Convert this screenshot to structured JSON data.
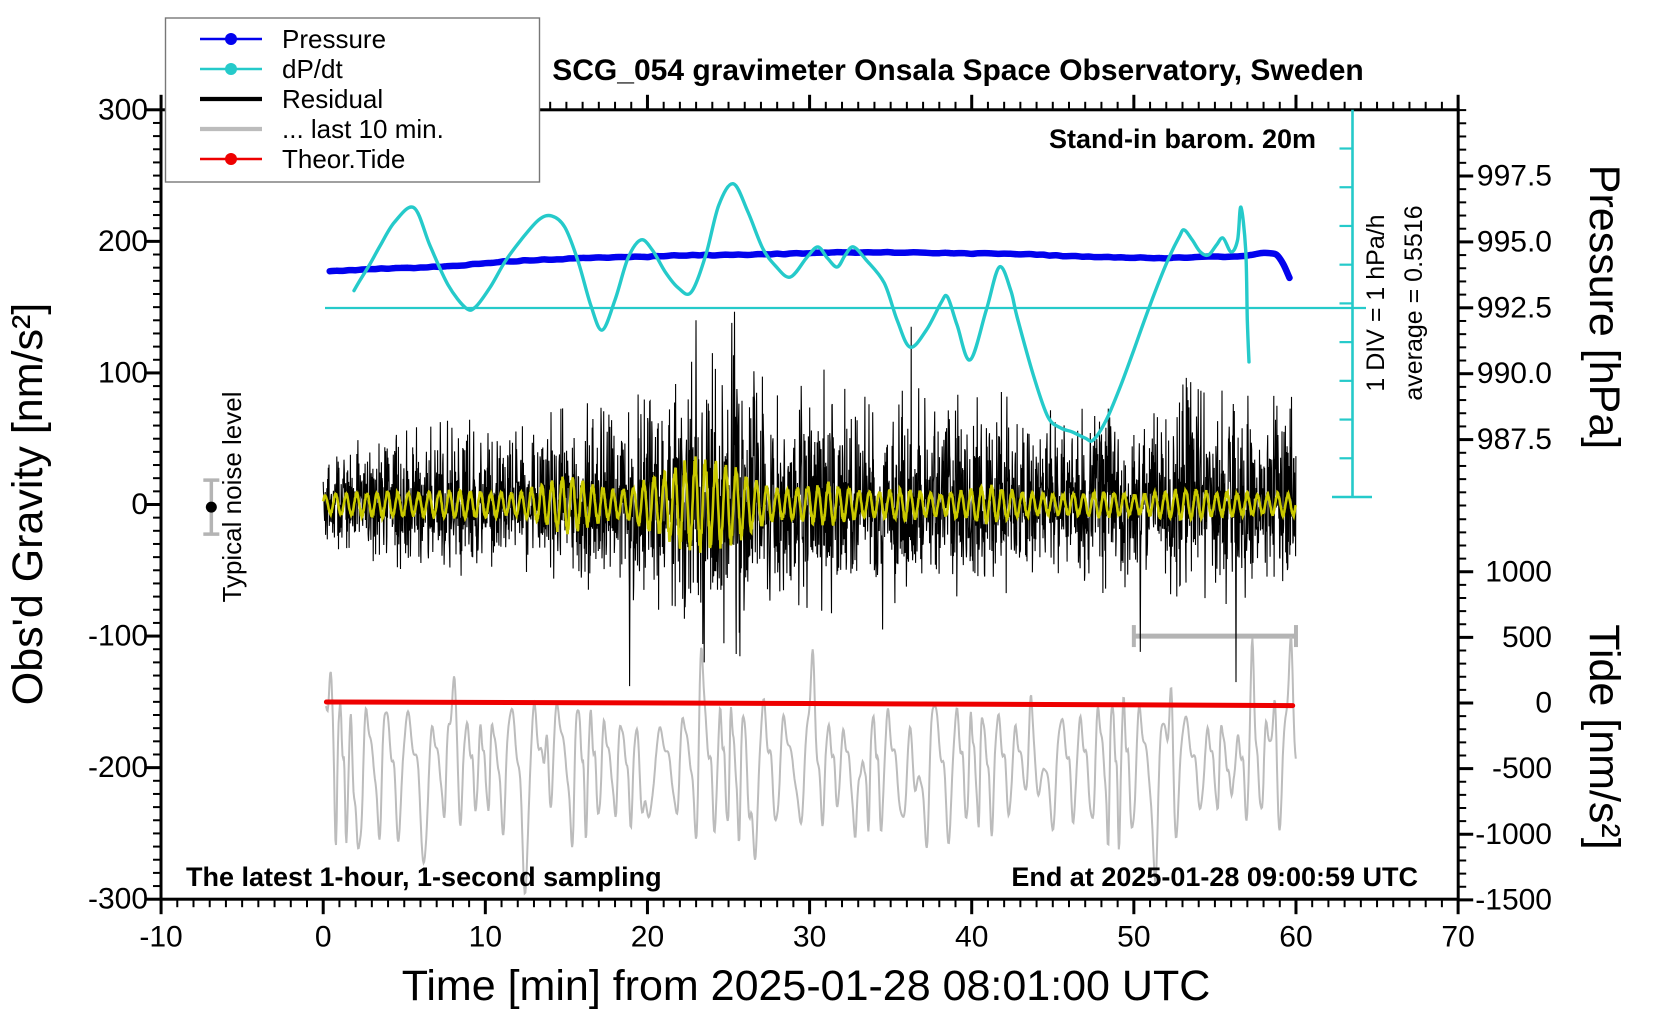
{
  "title": "SCG_054 gravimeter Onsala Space Observatory, Sweden",
  "annotations": {
    "barometer": "Stand-in barom. 20m",
    "div_scale": "1 DIV = 1 hPa/h",
    "average": "average = 0.5516",
    "noise_level": "Typical noise level",
    "sampling_note": "The latest 1-hour, 1-second sampling",
    "end_note": "End at 2025-01-28 09:00:59 UTC"
  },
  "legend": {
    "items": [
      {
        "label": "Pressure",
        "color": "#0202ee",
        "width": 2.6,
        "dot": true
      },
      {
        "label": "dP/dt",
        "color": "#25caca",
        "width": 2.6,
        "dot": true
      },
      {
        "label": "Residual",
        "color": "#000000",
        "width": 4.2,
        "dot": false
      },
      {
        "label": "... last 10 min.",
        "color": "#bcbcbc",
        "width": 4.2,
        "dot": false
      },
      {
        "label": "Theor.Tide",
        "color": "#ee0000",
        "width": 2.6,
        "dot": true
      }
    ]
  },
  "axes": {
    "x": {
      "label": "Time [min] from 2025-01-28 08:01:00 UTC",
      "range": [
        -10,
        70
      ],
      "major_ticks": [
        -10,
        0,
        10,
        20,
        30,
        40,
        50,
        60,
        70
      ],
      "minor_step": 1
    },
    "gravity": {
      "label": "Obs'd Gravity [nm/s²]",
      "range": [
        -300,
        300
      ],
      "major_ticks": [
        300,
        200,
        100,
        0,
        -100,
        -200,
        -300
      ],
      "minor_step": 10
    },
    "pressure": {
      "label": "Pressure [hPa]",
      "range": [
        986.5,
        1000
      ],
      "major_ticks": [
        997.5,
        995.0,
        992.5,
        990.0,
        987.5
      ],
      "minor_step": 0.5
    },
    "tide": {
      "label": "Tide [nm/s²]",
      "range": [
        -1500,
        1500
      ],
      "major_ticks": [
        1000,
        500,
        0,
        -500,
        -1000,
        -1500
      ],
      "minor_step": 100
    }
  },
  "chart_data": {
    "type": "line",
    "title": "SCG_054 gravimeter Onsala Space Observatory, Sweden",
    "xlabel": "Time [min] from 2025-01-28 08:01:00 UTC",
    "x_range_min": [
      -10,
      70
    ],
    "grid": false,
    "series": [
      {
        "name": "Pressure",
        "units": "hPa",
        "axis": "pressure",
        "color": "#0202ee",
        "points": [
          [
            0.4,
            993.88
          ],
          [
            2,
            993.94
          ],
          [
            4,
            993.99
          ],
          [
            6,
            994.03
          ],
          [
            8,
            994.08
          ],
          [
            10,
            994.2
          ],
          [
            12,
            994.28
          ],
          [
            14,
            994.33
          ],
          [
            16,
            994.38
          ],
          [
            18,
            994.42
          ],
          [
            20,
            994.44
          ],
          [
            22,
            994.49
          ],
          [
            24,
            994.5
          ],
          [
            26,
            994.52
          ],
          [
            28,
            994.54
          ],
          [
            30,
            994.57
          ],
          [
            32,
            994.6
          ],
          [
            34,
            994.61
          ],
          [
            36,
            994.6
          ],
          [
            38,
            994.58
          ],
          [
            40,
            994.56
          ],
          [
            42,
            994.56
          ],
          [
            44,
            994.52
          ],
          [
            46,
            994.46
          ],
          [
            48,
            994.43
          ],
          [
            50,
            994.4
          ],
          [
            51.5,
            994.38
          ],
          [
            53,
            994.41
          ],
          [
            54.5,
            994.45
          ],
          [
            55.5,
            994.42
          ],
          [
            56.5,
            994.44
          ],
          [
            57.5,
            994.55
          ],
          [
            58.2,
            994.62
          ],
          [
            58.8,
            994.5
          ],
          [
            59.3,
            994.1
          ],
          [
            59.9,
            993.2
          ]
        ]
      },
      {
        "name": "dP/dt",
        "units": "hPa/h",
        "axis": "dpdt",
        "color": "#25caca",
        "average_hpa_per_h": 0.5516,
        "div_equals_hpa_per_h": 1,
        "points": [
          [
            1.9,
            1.0
          ],
          [
            2.2,
            1.22
          ],
          [
            2.9,
            1.7
          ],
          [
            3.5,
            2.15
          ],
          [
            4.4,
            2.77
          ],
          [
            5.6,
            3.14
          ],
          [
            6.6,
            2.15
          ],
          [
            7.7,
            1.15
          ],
          [
            8.8,
            0.55
          ],
          [
            9.4,
            0.58
          ],
          [
            10.3,
            1.09
          ],
          [
            11.2,
            1.74
          ],
          [
            12.2,
            2.31
          ],
          [
            13.3,
            2.83
          ],
          [
            14.1,
            2.93
          ],
          [
            14.9,
            2.64
          ],
          [
            15.7,
            1.79
          ],
          [
            16.5,
            0.63
          ],
          [
            17.2,
            -0.02
          ],
          [
            18.0,
            0.76
          ],
          [
            18.8,
            1.84
          ],
          [
            19.6,
            2.31
          ],
          [
            20.3,
            2.05
          ],
          [
            21.1,
            1.48
          ],
          [
            21.9,
            1.07
          ],
          [
            22.7,
            0.96
          ],
          [
            23.6,
            1.92
          ],
          [
            24.4,
            3.21
          ],
          [
            25.3,
            3.76
          ],
          [
            26.2,
            3.03
          ],
          [
            27.1,
            2.1
          ],
          [
            27.9,
            1.64
          ],
          [
            28.8,
            1.35
          ],
          [
            29.8,
            1.84
          ],
          [
            30.5,
            2.13
          ],
          [
            31.1,
            1.84
          ],
          [
            31.7,
            1.61
          ],
          [
            32.2,
            1.92
          ],
          [
            32.7,
            2.13
          ],
          [
            33.5,
            1.79
          ],
          [
            34.6,
            1.2
          ],
          [
            35.4,
            0.24
          ],
          [
            36.2,
            -0.46
          ],
          [
            37.2,
            -0.02
          ],
          [
            38.1,
            0.68
          ],
          [
            38.5,
            0.84
          ],
          [
            39.1,
            0.11
          ],
          [
            39.9,
            -0.79
          ],
          [
            40.9,
            0.5
          ],
          [
            41.7,
            1.61
          ],
          [
            42.4,
            1.02
          ],
          [
            42.8,
            0.32
          ],
          [
            43.8,
            -1.18
          ],
          [
            44.7,
            -2.26
          ],
          [
            45.5,
            -2.55
          ],
          [
            46.2,
            -2.65
          ],
          [
            47.0,
            -2.81
          ],
          [
            47.5,
            -2.86
          ],
          [
            48.3,
            -2.34
          ],
          [
            49.2,
            -1.44
          ],
          [
            50.0,
            -0.53
          ],
          [
            51.0,
            0.63
          ],
          [
            52.1,
            1.79
          ],
          [
            52.8,
            2.39
          ],
          [
            53.1,
            2.57
          ],
          [
            53.6,
            2.31
          ],
          [
            54.1,
            2.0
          ],
          [
            54.6,
            1.92
          ],
          [
            55.1,
            2.18
          ],
          [
            55.5,
            2.36
          ],
          [
            56.0,
            2.0
          ],
          [
            56.4,
            2.31
          ],
          [
            56.6,
            3.16
          ],
          [
            56.9,
            2.05
          ],
          [
            57.0,
            0.24
          ],
          [
            57.1,
            -0.84
          ]
        ]
      },
      {
        "name": "Residual",
        "units": "nm/s²",
        "axis": "gravity",
        "color": "#000000",
        "synthetic_noise": true,
        "seed": 42,
        "center": 0,
        "sample_step_min": 0.021,
        "envelope": [
          [
            0,
            36
          ],
          [
            2,
            42
          ],
          [
            4,
            50
          ],
          [
            6,
            52
          ],
          [
            8,
            56
          ],
          [
            10,
            56
          ],
          [
            12,
            50
          ],
          [
            14,
            62
          ],
          [
            16,
            66
          ],
          [
            18,
            72
          ],
          [
            20,
            78
          ],
          [
            22,
            92
          ],
          [
            22.8,
            128
          ],
          [
            23.4,
            110
          ],
          [
            24,
            100
          ],
          [
            25,
            120
          ],
          [
            25.6,
            132
          ],
          [
            26.2,
            95
          ],
          [
            27,
            85
          ],
          [
            28,
            80
          ],
          [
            29,
            78
          ],
          [
            30,
            82
          ],
          [
            31,
            90
          ],
          [
            32,
            80
          ],
          [
            33,
            72
          ],
          [
            34,
            70
          ],
          [
            35,
            76
          ],
          [
            36,
            82
          ],
          [
            37,
            75
          ],
          [
            38,
            70
          ],
          [
            39,
            72
          ],
          [
            40,
            76
          ],
          [
            41,
            86
          ],
          [
            42,
            72
          ],
          [
            43,
            68
          ],
          [
            44,
            64
          ],
          [
            45,
            62
          ],
          [
            46,
            60
          ],
          [
            47,
            64
          ],
          [
            48,
            70
          ],
          [
            49,
            66
          ],
          [
            50,
            64
          ],
          [
            51,
            68
          ],
          [
            52,
            72
          ],
          [
            53,
            86
          ],
          [
            54,
            76
          ],
          [
            55,
            70
          ],
          [
            56,
            82
          ],
          [
            57,
            72
          ],
          [
            58,
            68
          ],
          [
            59,
            74
          ],
          [
            60,
            70
          ]
        ],
        "spikes": [
          [
            18.9,
            -138
          ],
          [
            23.0,
            140
          ],
          [
            23.5,
            -120
          ],
          [
            25.2,
            138
          ],
          [
            34.5,
            -95
          ],
          [
            50.4,
            -112
          ],
          [
            56.3,
            -135
          ]
        ]
      },
      {
        "name": "Residual band-pass (unlabeled yellow)",
        "units": "nm/s²",
        "axis": "gravity",
        "color": "#c9c900",
        "synthetic_noise": true,
        "seed": 7,
        "period_min": 0.62,
        "envelope": [
          [
            0,
            7
          ],
          [
            2,
            8
          ],
          [
            4,
            9
          ],
          [
            6,
            8
          ],
          [
            8,
            10
          ],
          [
            10,
            9
          ],
          [
            12,
            8
          ],
          [
            13,
            12
          ],
          [
            14,
            16
          ],
          [
            15,
            20
          ],
          [
            16,
            17
          ],
          [
            17,
            12
          ],
          [
            18,
            10
          ],
          [
            19,
            12
          ],
          [
            20,
            18
          ],
          [
            21,
            22
          ],
          [
            22,
            28
          ],
          [
            23,
            32
          ],
          [
            24,
            30
          ],
          [
            25,
            28
          ],
          [
            26,
            22
          ],
          [
            27,
            15
          ],
          [
            28,
            11
          ],
          [
            29,
            11
          ],
          [
            30,
            13
          ],
          [
            31,
            15
          ],
          [
            32,
            13
          ],
          [
            33,
            10
          ],
          [
            34,
            9
          ],
          [
            35,
            10
          ],
          [
            36,
            11
          ],
          [
            37,
            9
          ],
          [
            38,
            8
          ],
          [
            39,
            9
          ],
          [
            40,
            11
          ],
          [
            41,
            13
          ],
          [
            42,
            11
          ],
          [
            43,
            9
          ],
          [
            44,
            8
          ],
          [
            45,
            7
          ],
          [
            46,
            8
          ],
          [
            47,
            8
          ],
          [
            48,
            9
          ],
          [
            49,
            8
          ],
          [
            50,
            7
          ],
          [
            51,
            8
          ],
          [
            52,
            9
          ],
          [
            53,
            11
          ],
          [
            54,
            10
          ],
          [
            55,
            8
          ],
          [
            56,
            9
          ],
          [
            57,
            8
          ],
          [
            58,
            7
          ],
          [
            59,
            8
          ],
          [
            60,
            8
          ]
        ]
      },
      {
        "name": "... last 10 min.",
        "units": "nm/s² (tide axis)",
        "axis": "tide",
        "color": "#bcbcbc",
        "synthetic_noise": true,
        "seed": 13,
        "center": -430,
        "base_amplitude": 480,
        "base_period_min": 1.18,
        "dip_events_t": [
          2.0,
          6.2,
          12.4,
          19.7,
          26.3,
          33.0,
          36.5,
          44.1,
          51.4,
          56.1
        ],
        "peak_events_t": [
          0.5,
          8.1,
          13.8,
          23.3,
          30.2,
          43.6,
          52.3,
          56.0,
          57.3,
          58.7,
          59.7
        ]
      },
      {
        "name": "Theor.Tide",
        "units": "nm/s² (tide axis)",
        "axis": "tide",
        "color": "#ee0000",
        "points": [
          [
            0.2,
            8
          ],
          [
            30,
            -4
          ],
          [
            59.8,
            -20
          ]
        ]
      }
    ],
    "dpdt_scalebar": {
      "label": "1 DIV = 1 hPa/h",
      "average_label": "average = 0.5516",
      "divisions": 10
    },
    "noise_marker": {
      "t": -6.9,
      "value": -2,
      "error": 20.5,
      "label": "Typical noise level"
    },
    "last10_bracket": {
      "t_start": 50,
      "t_end": 60,
      "gravity_level": -100
    }
  }
}
